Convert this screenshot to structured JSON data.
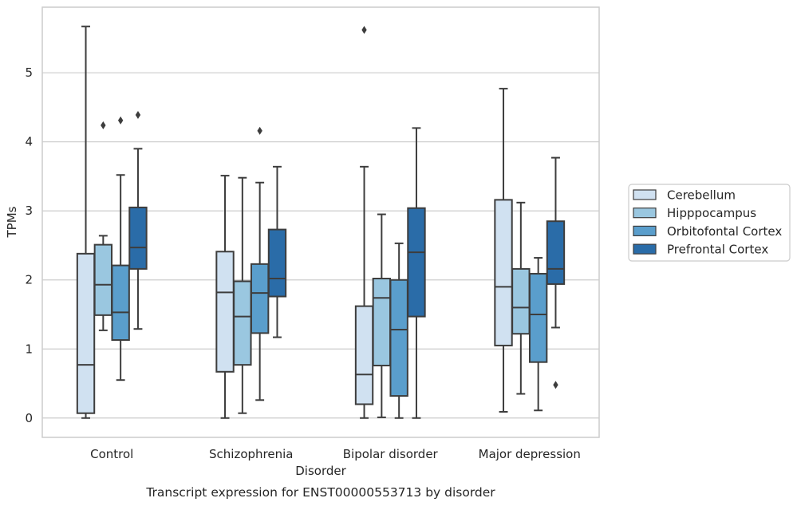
{
  "chart_data": {
    "type": "box",
    "title": "",
    "caption": "Transcript expression for ENST00000553713 by disorder",
    "xlabel": "Disorder",
    "ylabel": "TPMs",
    "ylim": [
      -0.28,
      5.95
    ],
    "yticks": [
      0,
      1,
      2,
      3,
      4,
      5
    ],
    "grid": "horizontal",
    "legend_position": "right",
    "categories": [
      "Control",
      "Schizophrenia",
      "Bipolar disorder",
      "Major depression"
    ],
    "series": [
      {
        "name": "Cerebellum",
        "color": "#d0e1f1",
        "boxes": [
          {
            "whislo": 0.0,
            "q1": 0.07,
            "med": 0.77,
            "q3": 2.38,
            "whishi": 5.67,
            "fliers": []
          },
          {
            "whislo": 0.0,
            "q1": 0.67,
            "med": 1.82,
            "q3": 2.41,
            "whishi": 3.51,
            "fliers": []
          },
          {
            "whislo": 0.0,
            "q1": 0.2,
            "med": 0.63,
            "q3": 1.62,
            "whishi": 3.64,
            "fliers": [
              5.62
            ]
          },
          {
            "whislo": 0.09,
            "q1": 1.05,
            "med": 1.9,
            "q3": 3.16,
            "whishi": 4.77,
            "fliers": []
          }
        ]
      },
      {
        "name": "Hipppocampus",
        "color": "#9ac7e0",
        "boxes": [
          {
            "whislo": 1.27,
            "q1": 1.49,
            "med": 1.93,
            "q3": 2.51,
            "whishi": 2.64,
            "fliers": [
              4.24
            ]
          },
          {
            "whislo": 0.07,
            "q1": 0.77,
            "med": 1.47,
            "q3": 1.98,
            "whishi": 3.48,
            "fliers": []
          },
          {
            "whislo": 0.01,
            "q1": 0.76,
            "med": 1.74,
            "q3": 2.02,
            "whishi": 2.95,
            "fliers": []
          },
          {
            "whislo": 0.35,
            "q1": 1.22,
            "med": 1.6,
            "q3": 2.16,
            "whishi": 3.12,
            "fliers": []
          }
        ]
      },
      {
        "name": "Orbitofontal Cortex",
        "color": "#5a9ecc",
        "boxes": [
          {
            "whislo": 0.55,
            "q1": 1.13,
            "med": 1.53,
            "q3": 2.21,
            "whishi": 3.52,
            "fliers": [
              4.31
            ]
          },
          {
            "whislo": 0.26,
            "q1": 1.23,
            "med": 1.81,
            "q3": 2.23,
            "whishi": 3.41,
            "fliers": [
              4.16
            ]
          },
          {
            "whislo": 0.0,
            "q1": 0.32,
            "med": 1.28,
            "q3": 2.0,
            "whishi": 2.53,
            "fliers": []
          },
          {
            "whislo": 0.11,
            "q1": 0.81,
            "med": 1.5,
            "q3": 2.09,
            "whishi": 2.32,
            "fliers": []
          }
        ]
      },
      {
        "name": "Prefrontal Cortex",
        "color": "#2a6ca8",
        "boxes": [
          {
            "whislo": 1.29,
            "q1": 2.16,
            "med": 2.47,
            "q3": 3.05,
            "whishi": 3.9,
            "fliers": [
              4.39
            ]
          },
          {
            "whislo": 1.17,
            "q1": 1.76,
            "med": 2.02,
            "q3": 2.73,
            "whishi": 3.64,
            "fliers": []
          },
          {
            "whislo": 0.0,
            "q1": 1.47,
            "med": 2.4,
            "q3": 3.04,
            "whishi": 4.2,
            "fliers": []
          },
          {
            "whislo": 1.31,
            "q1": 1.94,
            "med": 2.16,
            "q3": 2.85,
            "whishi": 3.77,
            "fliers": [
              0.48
            ]
          }
        ]
      }
    ]
  }
}
